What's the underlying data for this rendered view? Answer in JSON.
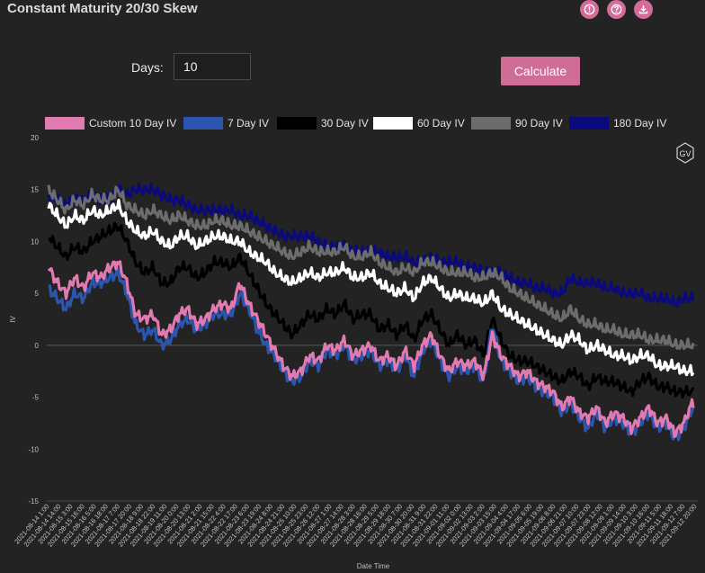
{
  "header": {
    "title": "Constant Maturity 20/30 Skew"
  },
  "icons": [
    "info-icon",
    "help-icon",
    "download-icon"
  ],
  "controls": {
    "days_label": "Days:",
    "days_value": "10",
    "calculate_label": "Calculate"
  },
  "badge": {
    "text": "GV"
  },
  "chart_data": {
    "type": "line",
    "xlabel": "Date Time",
    "ylabel": "IV",
    "ylim": [
      -15,
      20
    ],
    "yticks": [
      -15,
      -10,
      -5,
      0,
      5,
      10,
      15,
      20
    ],
    "xtick_labels": [
      "2021-08-14 1:00",
      "2021-08-14 14:00",
      "2021-08-15 3:00",
      "2021-08-15 16:00",
      "2021-08-16 5:00",
      "2021-08-16 18:00",
      "2021-08-17 7:00",
      "2021-08-17 20:00",
      "2021-08-18 9:00",
      "2021-08-18 22:00",
      "2021-08-19 11:00",
      "2021-08-20 0:00",
      "2021-08-20 13:00",
      "2021-08-21 2:00",
      "2021-08-21 15:00",
      "2021-08-22 4:00",
      "2021-08-22 17:00",
      "2021-08-23 6:00",
      "2021-08-23 19:00",
      "2021-08-24 8:00",
      "2021-08-24 21:00",
      "2021-08-25 10:00",
      "2021-08-25 23:00",
      "2021-08-26 12:00",
      "2021-08-27 1:00",
      "2021-08-27 14:00",
      "2021-08-28 3:00",
      "2021-08-28 16:00",
      "2021-08-29 5:00",
      "2021-08-29 18:00",
      "2021-08-30 7:00",
      "2021-08-30 20:00",
      "2021-08-31 9:00",
      "2021-08-31 22:00",
      "2021-09-01 11:00",
      "2021-09-02 0:00",
      "2021-09-02 13:00",
      "2021-09-03 2:00",
      "2021-09-03 15:00",
      "2021-09-04 4:00",
      "2021-09-04 17:00",
      "2021-09-05 6:00",
      "2021-09-05 19:00",
      "2021-09-06 8:00",
      "2021-09-06 21:00",
      "2021-09-07 10:00",
      "2021-09-07 23:00",
      "2021-09-08 12:00",
      "2021-09-09 1:00",
      "2021-09-09 14:00",
      "2021-09-10 3:00",
      "2021-09-10 16:00",
      "2021-09-11 5:00",
      "2021-09-11 18:00",
      "2021-09-12 7:00",
      "2021-09-12 20:00"
    ],
    "legend_position": "top",
    "grid": false,
    "series": [
      {
        "name": "Custom 10 Day IV",
        "color": "#e07ab0",
        "values": [
          7.5,
          6,
          5,
          6.5,
          5.5,
          7,
          6.5,
          7.5,
          8,
          6,
          3,
          2.5,
          3,
          1,
          1.5,
          3,
          3.5,
          2,
          2.5,
          3.5,
          4,
          3.5,
          6,
          4,
          2.5,
          1,
          -0.5,
          -2,
          -3,
          -2.5,
          -1,
          -1.5,
          0,
          -0.5,
          0.5,
          -1,
          -0.5,
          0,
          -1.5,
          -1,
          -2,
          -0.5,
          -2,
          0,
          1,
          -1,
          -2.5,
          -1.5,
          -2,
          -1.5,
          -3,
          1,
          -1,
          -2,
          -3,
          -2.5,
          -3.5,
          -4,
          -4.5,
          -6,
          -5,
          -6.5,
          -7,
          -6,
          -7.5,
          -6.5,
          -7,
          -8,
          -7,
          -6,
          -7.5,
          -7,
          -8.5,
          -7.5,
          -5.5
        ]
      },
      {
        "name": "7 Day IV",
        "color": "#2c55b0",
        "values": [
          5.5,
          4.5,
          3.5,
          5,
          4.5,
          6,
          6,
          6.5,
          7,
          5,
          2,
          1,
          1.5,
          0,
          0.5,
          2,
          2.5,
          1.5,
          2,
          3,
          3,
          3,
          5,
          3.5,
          1.5,
          0,
          -1,
          -2.5,
          -3.5,
          -3,
          -1.5,
          -2,
          -0.5,
          -1,
          0,
          -1.5,
          -1,
          -0.5,
          -2,
          -1.5,
          -2.5,
          -1,
          -3,
          -0.5,
          0.5,
          -1.5,
          -3,
          -2,
          -2.5,
          -2,
          -3.5,
          2,
          -1.5,
          -2.5,
          -3.5,
          -3,
          -4,
          -4.5,
          -5,
          -6.5,
          -5.5,
          -7,
          -8,
          -6.5,
          -8,
          -7,
          -7.5,
          -8.5,
          -7.5,
          -6.5,
          -8,
          -7.5,
          -9,
          -8,
          -6
        ]
      },
      {
        "name": "30 Day IV",
        "color": "#000000",
        "values": [
          10.5,
          9.5,
          8.5,
          9.5,
          9,
          10,
          10.5,
          11,
          11.5,
          10,
          8,
          7,
          7.5,
          6,
          6,
          7.5,
          7.5,
          6.5,
          7,
          8,
          8,
          7.5,
          8.5,
          7,
          5.5,
          4,
          3,
          2,
          1,
          2,
          3,
          2.5,
          3.5,
          3,
          4,
          2.5,
          3,
          3,
          1.5,
          2,
          1,
          2,
          0.5,
          2.5,
          3,
          1.5,
          0,
          1,
          0,
          0.5,
          -1,
          2.5,
          0.5,
          -1,
          -1.5,
          -1.5,
          -2,
          -2.5,
          -3,
          -3.5,
          -2.5,
          -3,
          -4,
          -3,
          -3.5,
          -3.5,
          -4,
          -4.5,
          -3.5,
          -3,
          -4,
          -4,
          -4.5,
          -4.5,
          -4.5
        ]
      },
      {
        "name": "60 Day IV",
        "color": "#ffffff",
        "values": [
          13.5,
          12.5,
          11.5,
          12.5,
          12,
          13,
          12.5,
          13,
          13.5,
          12,
          11,
          10.5,
          11,
          10,
          9.5,
          10.5,
          10.5,
          9.5,
          10,
          10.5,
          10.5,
          10,
          10,
          9,
          8.5,
          8,
          7,
          6.5,
          6,
          6.5,
          7,
          6.5,
          7,
          7,
          7.5,
          6.5,
          6.5,
          7,
          6,
          5.5,
          5,
          5.5,
          4.5,
          6,
          6.5,
          5.5,
          4.5,
          5,
          4.5,
          4.5,
          4,
          5,
          3.5,
          3,
          2.5,
          2,
          1.5,
          1,
          0.5,
          0,
          1,
          0.5,
          -0.5,
          0,
          -0.5,
          -1,
          -1,
          -1.5,
          -1,
          -1,
          -2,
          -2,
          -2,
          -2.5,
          -2.5
        ]
      },
      {
        "name": "90 Day IV",
        "color": "#6c6c6c",
        "values": [
          15,
          14,
          13,
          14,
          13.5,
          14.5,
          14,
          14,
          15,
          13.5,
          13,
          12.5,
          13,
          12.5,
          12,
          12.5,
          12,
          11.5,
          11.5,
          12,
          12,
          11.5,
          11.5,
          11,
          10.5,
          10,
          9.5,
          9,
          8.5,
          9,
          9.5,
          9,
          9,
          9,
          9.5,
          8.5,
          8.5,
          9,
          8,
          7.5,
          7,
          7.5,
          7,
          8,
          8,
          7.5,
          7,
          7,
          7,
          6.5,
          6.5,
          7,
          6.5,
          5.5,
          5,
          4.5,
          4,
          3.5,
          3,
          2.5,
          3.5,
          2.5,
          2,
          2,
          1.5,
          1.5,
          1,
          1,
          1,
          0.5,
          0.5,
          0.5,
          0,
          0,
          0
        ]
      },
      {
        "name": "180 Day IV",
        "color": "#0a0a7a",
        "values": [
          14.5,
          14,
          13.5,
          14,
          14,
          14.5,
          14,
          14,
          15,
          14.5,
          15,
          15,
          15,
          14.5,
          14,
          14,
          13.5,
          13,
          13,
          13,
          13,
          13,
          12.5,
          12.5,
          12,
          11.5,
          11,
          10.5,
          10.5,
          10.5,
          10.5,
          10,
          9.5,
          9.5,
          9.5,
          9,
          9,
          9,
          9,
          8.5,
          8.5,
          8.5,
          8,
          8,
          8.5,
          8,
          8,
          8,
          7.5,
          7.5,
          7,
          7,
          7,
          6.5,
          6,
          6,
          5.5,
          5.5,
          5,
          5,
          6.5,
          6,
          6,
          6,
          5.5,
          5.5,
          5,
          5,
          5,
          4.5,
          4.5,
          4.5,
          4,
          4.5,
          4.5
        ]
      }
    ]
  }
}
